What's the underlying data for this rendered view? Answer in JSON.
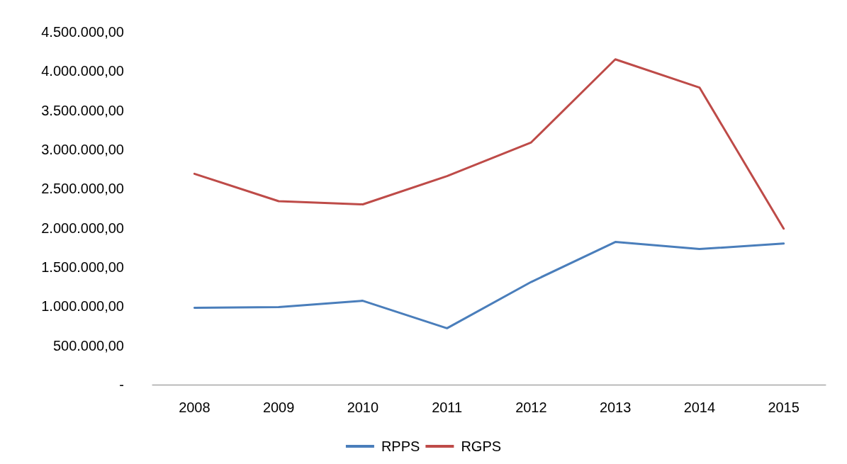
{
  "chart_data": {
    "type": "line",
    "categories": [
      "2008",
      "2009",
      "2010",
      "2011",
      "2012",
      "2013",
      "2014",
      "2015"
    ],
    "series": [
      {
        "name": "RPPS",
        "color": "#4a7ebb",
        "values": [
          980000,
          990000,
          1070000,
          720000,
          1310000,
          1820000,
          1730000,
          1800000
        ]
      },
      {
        "name": "RGPS",
        "color": "#be4b48",
        "values": [
          2690000,
          2340000,
          2300000,
          2660000,
          3090000,
          4150000,
          3790000,
          1990000
        ]
      }
    ],
    "ylim": [
      0,
      4500000
    ],
    "yticks": [
      {
        "value": 0,
        "label": "-"
      },
      {
        "value": 500000,
        "label": "500.000,00"
      },
      {
        "value": 1000000,
        "label": "1.000.000,00"
      },
      {
        "value": 1500000,
        "label": "1.500.000,00"
      },
      {
        "value": 2000000,
        "label": "2.000.000,00"
      },
      {
        "value": 2500000,
        "label": "2.500.000,00"
      },
      {
        "value": 3000000,
        "label": "3.000.000,00"
      },
      {
        "value": 3500000,
        "label": "3.500.000,00"
      },
      {
        "value": 4000000,
        "label": "4.000.000,00"
      },
      {
        "value": 4500000,
        "label": "4.500.000,00"
      }
    ],
    "grid": false,
    "legend": "bottom",
    "marker": "none",
    "line_style": "solid"
  }
}
